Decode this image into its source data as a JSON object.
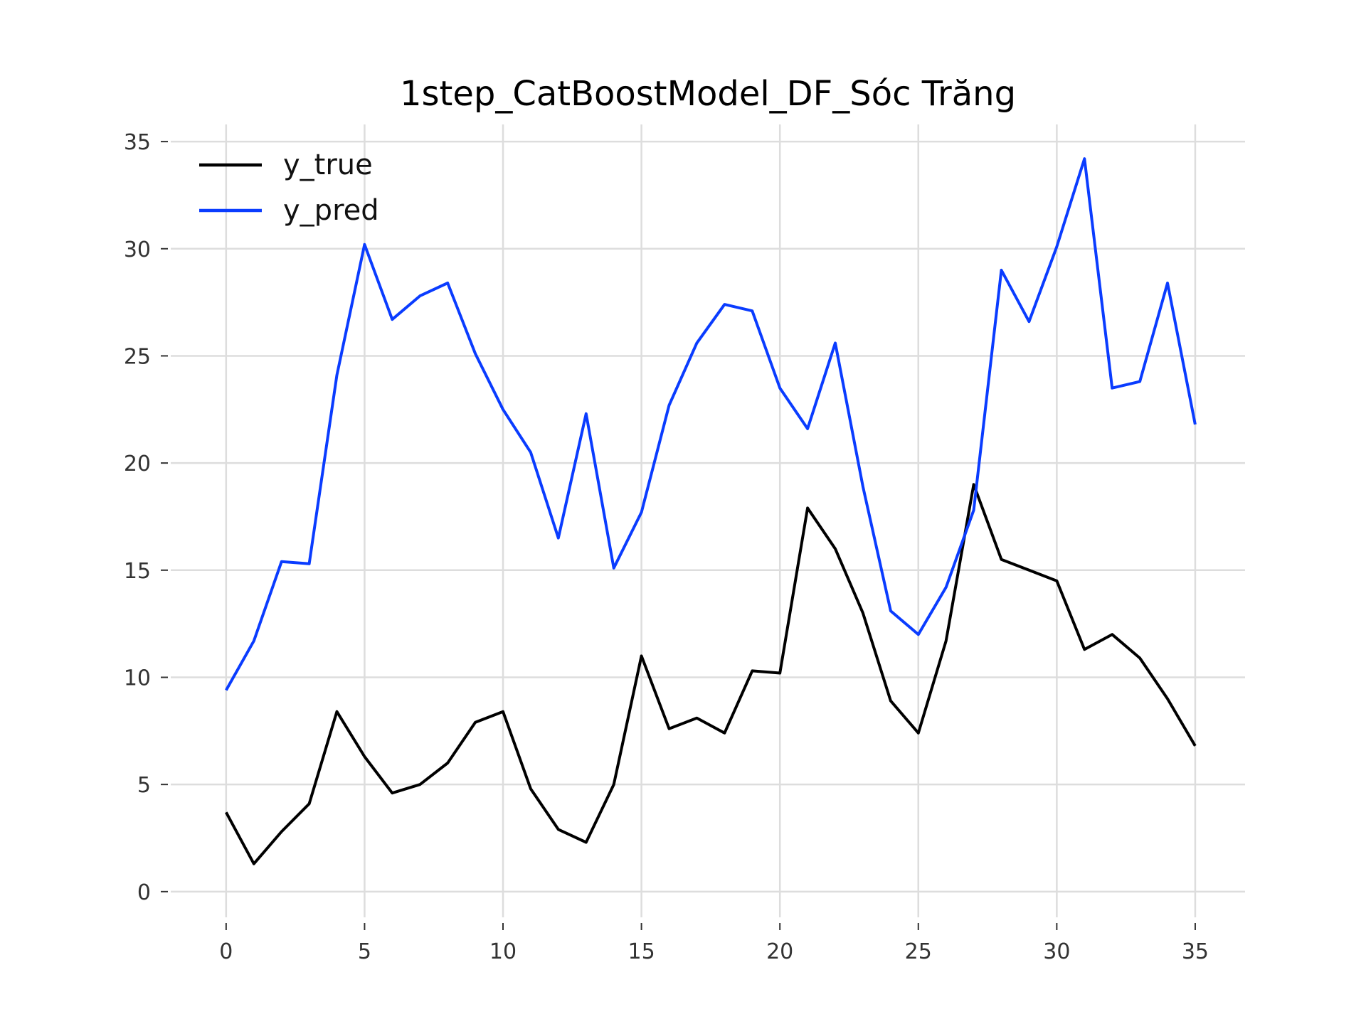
{
  "chart_data": {
    "type": "line",
    "title": "1step_CatBoostModel_DF_Sóc Trăng",
    "xlabel": "",
    "ylabel": "",
    "xlim": [
      -2,
      36.8
    ],
    "ylim": [
      -1.2,
      35.8
    ],
    "xticks": [
      0,
      5,
      10,
      15,
      20,
      25,
      30,
      35
    ],
    "yticks": [
      0,
      5,
      10,
      15,
      20,
      25,
      30,
      35
    ],
    "grid": true,
    "legend_position": "top-left",
    "x": [
      0,
      1,
      2,
      3,
      4,
      5,
      6,
      7,
      8,
      9,
      10,
      11,
      12,
      13,
      14,
      15,
      16,
      17,
      18,
      19,
      20,
      21,
      22,
      23,
      24,
      25,
      26,
      27,
      28,
      29,
      30,
      31,
      32,
      33,
      34,
      35
    ],
    "series": [
      {
        "name": "y_true",
        "color": "#000000",
        "values": [
          3.7,
          1.3,
          2.8,
          4.1,
          8.4,
          6.3,
          4.6,
          5.0,
          6.0,
          7.9,
          8.4,
          4.8,
          2.9,
          2.3,
          5.0,
          11.0,
          7.6,
          8.1,
          7.4,
          10.3,
          10.2,
          17.9,
          16.0,
          13.0,
          8.9,
          7.4,
          11.7,
          19.0,
          15.5,
          15.0,
          14.5,
          11.3,
          12.0,
          10.9,
          9.0,
          6.8
        ]
      },
      {
        "name": "y_pred",
        "color": "#0a3cff",
        "values": [
          9.4,
          11.7,
          15.4,
          15.3,
          24.1,
          30.2,
          26.7,
          27.8,
          28.4,
          25.1,
          22.5,
          20.5,
          16.5,
          22.3,
          15.1,
          17.7,
          22.7,
          25.6,
          27.4,
          27.1,
          23.5,
          21.6,
          25.6,
          18.9,
          13.1,
          12.0,
          14.2,
          17.8,
          29.0,
          26.6,
          30.1,
          34.2,
          23.5,
          23.8,
          28.4,
          21.8
        ]
      }
    ]
  }
}
